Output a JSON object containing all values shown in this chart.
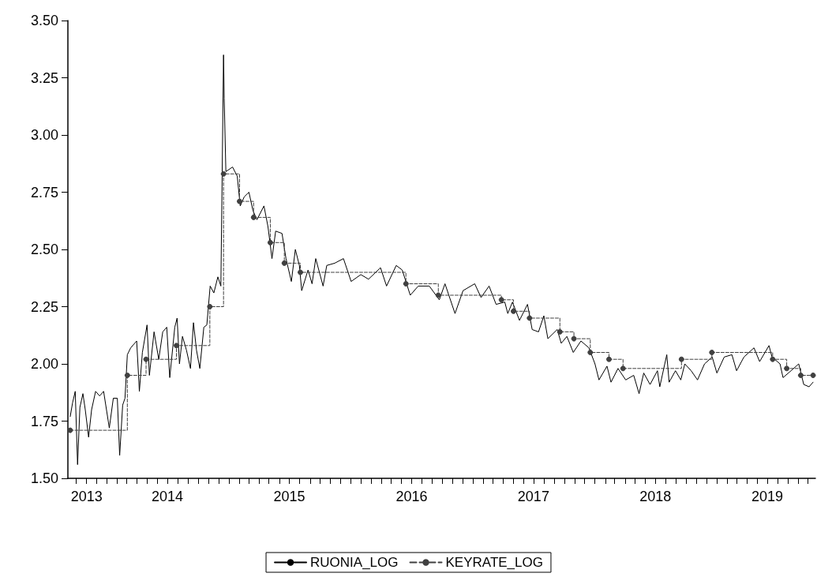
{
  "chart_data": {
    "type": "line",
    "xlim": [
      "2013-09-06",
      "2019-10-23"
    ],
    "xticks": [
      {
        "value": "2013-10",
        "label": null
      },
      {
        "value": "2013-11",
        "label": "2013"
      },
      {
        "value": "2013-12",
        "label": null
      },
      {
        "value": "2014-01",
        "label": null
      },
      {
        "value": "2014-02",
        "label": null
      },
      {
        "value": "2014-03",
        "label": null
      },
      {
        "value": "2014-04",
        "label": null
      },
      {
        "value": "2014-05",
        "label": null
      },
      {
        "value": "2014-06",
        "label": null
      },
      {
        "value": "2014-07",
        "label": "2014"
      },
      {
        "value": "2014-08",
        "label": null
      },
      {
        "value": "2014-09",
        "label": null
      },
      {
        "value": "2014-10",
        "label": null
      },
      {
        "value": "2014-11",
        "label": null
      },
      {
        "value": "2014-12",
        "label": null
      },
      {
        "value": "2015-01",
        "label": null
      },
      {
        "value": "2015-02",
        "label": null
      },
      {
        "value": "2015-03",
        "label": null
      },
      {
        "value": "2015-04",
        "label": null
      },
      {
        "value": "2015-05",
        "label": null
      },
      {
        "value": "2015-06",
        "label": null
      },
      {
        "value": "2015-07",
        "label": "2015"
      },
      {
        "value": "2015-08",
        "label": null
      },
      {
        "value": "2015-09",
        "label": null
      },
      {
        "value": "2015-10",
        "label": null
      },
      {
        "value": "2015-11",
        "label": null
      },
      {
        "value": "2015-12",
        "label": null
      },
      {
        "value": "2016-01",
        "label": null
      },
      {
        "value": "2016-02",
        "label": null
      },
      {
        "value": "2016-03",
        "label": null
      },
      {
        "value": "2016-04",
        "label": null
      },
      {
        "value": "2016-05",
        "label": null
      },
      {
        "value": "2016-06",
        "label": null
      },
      {
        "value": "2016-07",
        "label": "2016"
      },
      {
        "value": "2016-08",
        "label": null
      },
      {
        "value": "2016-09",
        "label": null
      },
      {
        "value": "2016-10",
        "label": null
      },
      {
        "value": "2016-11",
        "label": null
      },
      {
        "value": "2016-12",
        "label": null
      },
      {
        "value": "2017-01",
        "label": null
      },
      {
        "value": "2017-02",
        "label": null
      },
      {
        "value": "2017-03",
        "label": null
      },
      {
        "value": "2017-04",
        "label": null
      },
      {
        "value": "2017-05",
        "label": null
      },
      {
        "value": "2017-06",
        "label": null
      },
      {
        "value": "2017-07",
        "label": "2017"
      },
      {
        "value": "2017-08",
        "label": null
      },
      {
        "value": "2017-09",
        "label": null
      },
      {
        "value": "2017-10",
        "label": null
      },
      {
        "value": "2017-11",
        "label": null
      },
      {
        "value": "2017-12",
        "label": null
      },
      {
        "value": "2018-01",
        "label": null
      },
      {
        "value": "2018-02",
        "label": null
      },
      {
        "value": "2018-03",
        "label": null
      },
      {
        "value": "2018-04",
        "label": null
      },
      {
        "value": "2018-05",
        "label": null
      },
      {
        "value": "2018-06",
        "label": null
      },
      {
        "value": "2018-07",
        "label": "2018"
      },
      {
        "value": "2018-08",
        "label": null
      },
      {
        "value": "2018-09",
        "label": null
      },
      {
        "value": "2018-10",
        "label": null
      },
      {
        "value": "2018-11",
        "label": null
      },
      {
        "value": "2018-12",
        "label": null
      },
      {
        "value": "2019-01",
        "label": null
      },
      {
        "value": "2019-02",
        "label": null
      },
      {
        "value": "2019-03",
        "label": null
      },
      {
        "value": "2019-04",
        "label": null
      },
      {
        "value": "2019-05",
        "label": null
      },
      {
        "value": "2019-06",
        "label": "2019"
      },
      {
        "value": "2019-07",
        "label": null
      },
      {
        "value": "2019-08",
        "label": null
      },
      {
        "value": "2019-09",
        "label": null
      },
      {
        "value": "2019-10",
        "label": null
      }
    ],
    "ylim": [
      1.5,
      3.5
    ],
    "yticks": [
      {
        "value": 1.5,
        "label": "1.50"
      },
      {
        "value": 1.75,
        "label": "1.75"
      },
      {
        "value": 2.0,
        "label": "2.00"
      },
      {
        "value": 2.25,
        "label": "2.25"
      },
      {
        "value": 2.5,
        "label": "2.50"
      },
      {
        "value": 2.75,
        "label": "2.75"
      },
      {
        "value": 3.0,
        "label": "3.00"
      },
      {
        "value": 3.25,
        "label": "3.25"
      },
      {
        "value": 3.5,
        "label": "3.50"
      }
    ],
    "legend": "bottom",
    "series": [
      {
        "name": "RUONIA_LOG",
        "color": "#000000",
        "marker": "none",
        "line_style": "solid",
        "x": [
          "2013-09-13",
          "2013-09-20",
          "2013-09-28",
          "2013-10-05",
          "2013-10-12",
          "2013-10-21",
          "2013-10-28",
          "2013-11-07",
          "2013-11-16",
          "2013-11-28",
          "2013-12-10",
          "2013-12-22",
          "2014-01-08",
          "2014-01-20",
          "2014-02-01",
          "2014-02-08",
          "2014-02-17",
          "2014-02-24",
          "2014-03-03",
          "2014-03-13",
          "2014-03-31",
          "2014-04-08",
          "2014-04-17",
          "2014-05-01",
          "2014-05-08",
          "2014-05-22",
          "2014-06-05",
          "2014-06-17",
          "2014-06-29",
          "2014-07-08",
          "2014-07-23",
          "2014-07-30",
          "2014-08-06",
          "2014-08-15",
          "2014-08-27",
          "2014-09-08",
          "2014-09-17",
          "2014-09-26",
          "2014-10-06",
          "2014-10-18",
          "2014-10-27",
          "2014-11-06",
          "2014-11-17",
          "2014-11-29",
          "2014-12-08",
          "2014-12-16",
          "2014-12-18",
          "2014-12-23",
          "2015-01-12",
          "2015-01-26",
          "2015-02-04",
          "2015-02-16",
          "2015-03-02",
          "2015-03-14",
          "2015-03-26",
          "2015-04-16",
          "2015-04-28",
          "2015-05-10",
          "2015-05-21",
          "2015-06-09",
          "2015-06-21",
          "2015-07-07",
          "2015-07-19",
          "2015-07-31",
          "2015-08-07",
          "2015-08-26",
          "2015-09-07",
          "2015-09-18",
          "2015-10-10",
          "2015-10-21",
          "2015-11-14",
          "2015-12-10",
          "2016-01-02",
          "2016-01-31",
          "2016-02-23",
          "2016-03-30",
          "2016-04-17",
          "2016-05-16",
          "2016-06-03",
          "2016-06-27",
          "2016-07-21",
          "2016-08-23",
          "2016-09-22",
          "2016-10-09",
          "2016-11-08",
          "2016-12-02",
          "2017-01-06",
          "2017-01-25",
          "2017-02-18",
          "2017-03-11",
          "2017-04-06",
          "2017-04-15",
          "2017-04-29",
          "2017-05-20",
          "2017-06-13",
          "2017-06-27",
          "2017-07-16",
          "2017-08-01",
          "2017-08-13",
          "2017-09-10",
          "2017-09-22",
          "2017-10-09",
          "2017-10-28",
          "2017-11-20",
          "2017-12-14",
          "2018-01-01",
          "2018-01-13",
          "2018-02-06",
          "2018-02-18",
          "2018-03-11",
          "2018-04-03",
          "2018-04-27",
          "2018-05-13",
          "2018-05-27",
          "2018-06-15",
          "2018-07-07",
          "2018-07-14",
          "2018-08-04",
          "2018-08-11",
          "2018-08-30",
          "2018-09-15",
          "2018-09-27",
          "2018-10-16",
          "2018-11-04",
          "2018-11-25",
          "2018-12-18",
          "2019-01-01",
          "2019-01-23",
          "2019-02-15",
          "2019-03-01",
          "2019-03-23",
          "2019-04-22",
          "2019-05-09",
          "2019-06-06",
          "2019-06-15",
          "2019-07-09",
          "2019-07-18",
          "2019-08-11",
          "2019-09-03",
          "2019-09-18",
          "2019-10-04",
          "2019-10-16"
        ],
        "values": [
          1.77,
          1.83,
          1.88,
          1.56,
          1.81,
          1.87,
          1.8,
          1.68,
          1.8,
          1.88,
          1.86,
          1.88,
          1.72,
          1.85,
          1.85,
          1.6,
          1.82,
          1.85,
          2.04,
          2.07,
          2.1,
          1.88,
          2.05,
          2.17,
          1.95,
          2.14,
          2.02,
          2.14,
          2.16,
          1.94,
          2.16,
          2.2,
          2.0,
          2.12,
          2.06,
          1.98,
          2.18,
          2.06,
          1.98,
          2.16,
          2.17,
          2.34,
          2.31,
          2.38,
          2.34,
          3.35,
          3.16,
          2.84,
          2.86,
          2.82,
          2.69,
          2.73,
          2.75,
          2.67,
          2.63,
          2.69,
          2.6,
          2.46,
          2.58,
          2.57,
          2.46,
          2.36,
          2.5,
          2.43,
          2.32,
          2.41,
          2.35,
          2.46,
          2.34,
          2.43,
          2.44,
          2.46,
          2.36,
          2.39,
          2.37,
          2.42,
          2.34,
          2.43,
          2.41,
          2.3,
          2.34,
          2.34,
          2.28,
          2.35,
          2.22,
          2.32,
          2.35,
          2.29,
          2.34,
          2.26,
          2.27,
          2.22,
          2.27,
          2.19,
          2.26,
          2.15,
          2.14,
          2.21,
          2.11,
          2.15,
          2.09,
          2.12,
          2.05,
          2.1,
          2.07,
          2.0,
          1.93,
          1.99,
          1.92,
          1.98,
          1.93,
          1.95,
          1.87,
          1.96,
          1.91,
          1.97,
          1.9,
          2.04,
          1.92,
          1.97,
          1.93,
          2.0,
          1.97,
          1.93,
          2.0,
          2.03,
          1.96,
          2.03,
          2.04,
          1.97,
          2.03,
          2.07,
          2.01,
          2.08,
          2.03,
          2.0,
          1.94,
          1.97,
          2.0,
          1.91,
          1.9,
          1.92
        ]
      },
      {
        "name": "KEYRATE_LOG",
        "type": "step",
        "color": "#404040",
        "marker": "circle",
        "line_style": "dashed",
        "x": [
          "2013-09-13",
          "2014-03-03",
          "2014-04-28",
          "2014-07-28",
          "2014-11-05",
          "2014-12-16",
          "2015-02-02",
          "2015-03-16",
          "2015-05-05",
          "2015-06-16",
          "2015-08-03",
          "2016-06-14",
          "2016-09-19",
          "2017-03-27",
          "2017-05-02",
          "2017-06-19",
          "2017-09-18",
          "2017-10-30",
          "2017-12-18",
          "2018-02-12",
          "2018-03-26",
          "2018-09-17",
          "2018-12-17",
          "2019-06-17",
          "2019-07-29",
          "2019-09-09",
          "2019-10-16"
        ],
        "values": [
          1.71,
          1.95,
          2.02,
          2.08,
          2.25,
          2.83,
          2.71,
          2.64,
          2.53,
          2.44,
          2.4,
          2.35,
          2.3,
          2.28,
          2.23,
          2.2,
          2.14,
          2.11,
          2.05,
          2.02,
          1.98,
          2.02,
          2.05,
          2.02,
          1.98,
          1.95,
          1.95
        ]
      }
    ]
  }
}
